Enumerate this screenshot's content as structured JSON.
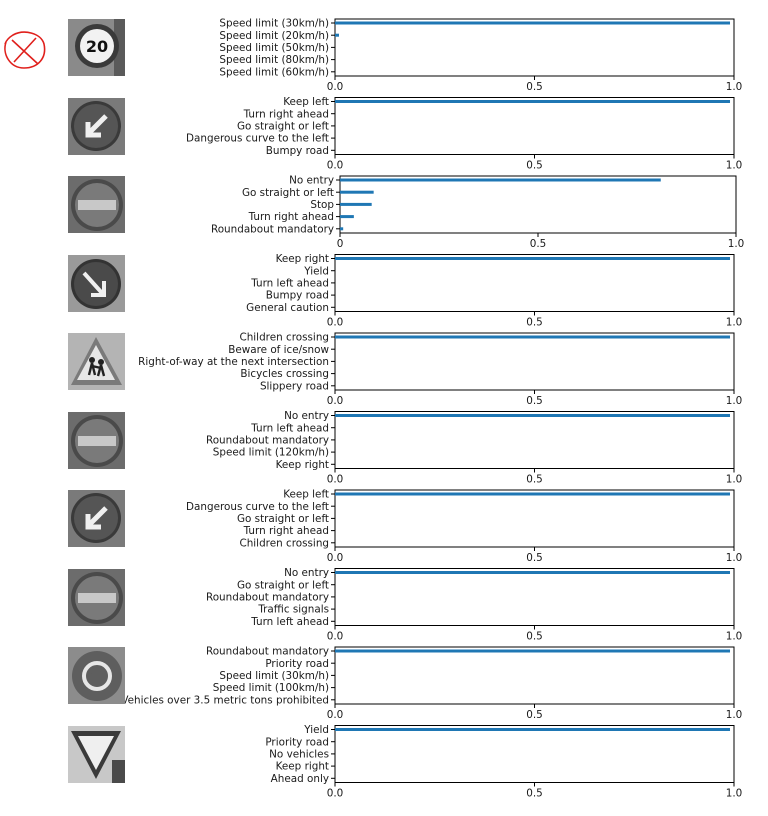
{
  "annotation": {
    "icon": "red-x-mark-icon",
    "color": "#e0201c"
  },
  "colors": {
    "bar": "#1f77b4",
    "axis": "#000000",
    "text": "#1a1a1a"
  },
  "chart_data": [
    {
      "type": "bar",
      "orientation": "horizontal",
      "sign_icon": "speed-limit-20-sign-icon",
      "categories": [
        "Speed limit (30km/h)",
        "Speed limit (20km/h)",
        "Speed limit (50km/h)",
        "Speed limit (80km/h)",
        "Speed limit (60km/h)"
      ],
      "values": [
        0.99,
        0.01,
        0.0,
        0.0,
        0.0
      ],
      "xlim": [
        0,
        1.0
      ],
      "xticks": [
        "0.0",
        "0.5",
        "1.0"
      ]
    },
    {
      "type": "bar",
      "orientation": "horizontal",
      "sign_icon": "keep-left-sign-icon",
      "categories": [
        "Keep left",
        "Turn right ahead",
        "Go straight or left",
        "Dangerous curve to the left",
        "Bumpy road"
      ],
      "values": [
        0.99,
        0.0,
        0.0,
        0.0,
        0.0
      ],
      "xlim": [
        0,
        1.0
      ],
      "xticks": [
        "0.0",
        "0.5",
        "1.0"
      ]
    },
    {
      "type": "bar",
      "orientation": "horizontal",
      "sign_icon": "no-entry-sign-icon",
      "categories": [
        "No entry",
        "Go straight or left",
        "Stop",
        "Turn right ahead",
        "Roundabout mandatory"
      ],
      "values": [
        0.81,
        0.085,
        0.08,
        0.035,
        0.008
      ],
      "xlim": [
        0,
        1.0
      ],
      "xticks": [
        "0",
        "0.5",
        "1.0"
      ]
    },
    {
      "type": "bar",
      "orientation": "horizontal",
      "sign_icon": "keep-right-sign-icon",
      "categories": [
        "Keep right",
        "Yield",
        "Turn left ahead",
        "Bumpy road",
        "General caution"
      ],
      "values": [
        0.99,
        0.0,
        0.0,
        0.0,
        0.0
      ],
      "xlim": [
        0,
        1.0
      ],
      "xticks": [
        "0.0",
        "0.5",
        "1.0"
      ]
    },
    {
      "type": "bar",
      "orientation": "horizontal",
      "sign_icon": "children-crossing-sign-icon",
      "categories": [
        "Children crossing",
        "Beware of ice/snow",
        "Right-of-way at the next intersection",
        "Bicycles crossing",
        "Slippery road"
      ],
      "values": [
        0.99,
        0.0,
        0.0,
        0.0,
        0.0
      ],
      "xlim": [
        0,
        1.0
      ],
      "xticks": [
        "0.0",
        "0.5",
        "1.0"
      ]
    },
    {
      "type": "bar",
      "orientation": "horizontal",
      "sign_icon": "no-entry-sign-icon",
      "categories": [
        "No entry",
        "Turn left ahead",
        "Roundabout mandatory",
        "Speed limit (120km/h)",
        "Keep right"
      ],
      "values": [
        0.99,
        0.0,
        0.0,
        0.0,
        0.0
      ],
      "xlim": [
        0,
        1.0
      ],
      "xticks": [
        "0.0",
        "0.5",
        "1.0"
      ]
    },
    {
      "type": "bar",
      "orientation": "horizontal",
      "sign_icon": "keep-left-sign-icon",
      "categories": [
        "Keep left",
        "Dangerous curve to the left",
        "Go straight or left",
        "Turn right ahead",
        "Children crossing"
      ],
      "values": [
        0.99,
        0.0,
        0.0,
        0.0,
        0.0
      ],
      "xlim": [
        0,
        1.0
      ],
      "xticks": [
        "0.0",
        "0.5",
        "1.0"
      ]
    },
    {
      "type": "bar",
      "orientation": "horizontal",
      "sign_icon": "no-entry-sign-icon",
      "categories": [
        "No entry",
        "Go straight or left",
        "Roundabout mandatory",
        "Traffic signals",
        "Turn left ahead"
      ],
      "values": [
        0.99,
        0.0,
        0.0,
        0.0,
        0.0
      ],
      "xlim": [
        0,
        1.0
      ],
      "xticks": [
        "0.0",
        "0.5",
        "1.0"
      ]
    },
    {
      "type": "bar",
      "orientation": "horizontal",
      "sign_icon": "roundabout-mandatory-sign-icon",
      "categories": [
        "Roundabout mandatory",
        "Priority road",
        "Speed limit (30km/h)",
        "Speed limit (100km/h)",
        "Vehicles over 3.5 metric tons prohibited"
      ],
      "values": [
        0.99,
        0.0,
        0.0,
        0.0,
        0.0
      ],
      "xlim": [
        0,
        1.0
      ],
      "xticks": [
        "0.0",
        "0.5",
        "1.0"
      ]
    },
    {
      "type": "bar",
      "orientation": "horizontal",
      "sign_icon": "yield-sign-icon",
      "categories": [
        "Yield",
        "Priority road",
        "No vehicles",
        "Keep right",
        "Ahead only"
      ],
      "values": [
        0.99,
        0.0,
        0.0,
        0.0,
        0.0
      ],
      "xlim": [
        0,
        1.0
      ],
      "xticks": [
        "0.0",
        "0.5",
        "1.0"
      ]
    }
  ]
}
